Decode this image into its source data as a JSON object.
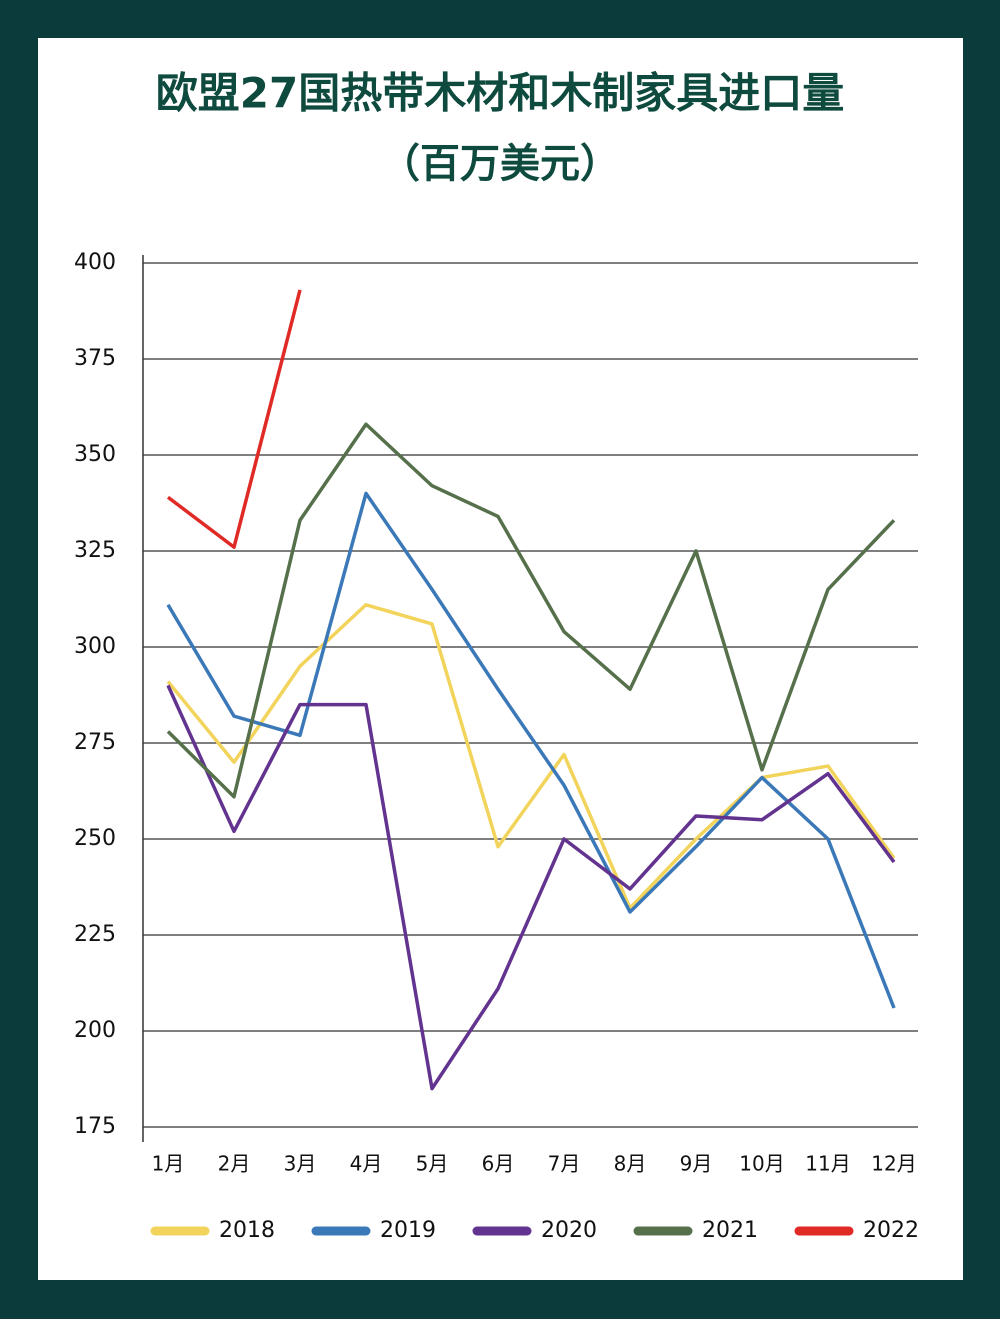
{
  "chart_data": {
    "type": "line",
    "title": "欧盟27国热带木材和木制家具进口量",
    "subtitle": "（百万美元）",
    "categories": [
      "1月",
      "2月",
      "3月",
      "4月",
      "5月",
      "6月",
      "7月",
      "8月",
      "9月",
      "10月",
      "11月",
      "12月"
    ],
    "series": [
      {
        "name": "2018",
        "color": "#f2d45c",
        "values": [
          291,
          270,
          295,
          311,
          306,
          248,
          272,
          232,
          250,
          266,
          269,
          245
        ]
      },
      {
        "name": "2019",
        "color": "#3a78b8",
        "values": [
          311,
          282,
          277,
          340,
          315,
          289,
          264,
          231,
          248,
          266,
          250,
          206
        ]
      },
      {
        "name": "2020",
        "color": "#62338f",
        "values": [
          290,
          252,
          285,
          285,
          185,
          211,
          250,
          237,
          256,
          255,
          267,
          244
        ]
      },
      {
        "name": "2021",
        "color": "#55704a",
        "values": [
          278,
          261,
          333,
          358,
          342,
          334,
          304,
          289,
          325,
          268,
          315,
          333
        ]
      },
      {
        "name": "2022",
        "color": "#e02a26",
        "values": [
          339,
          326,
          393,
          null,
          null,
          null,
          null,
          null,
          null,
          null,
          null,
          null
        ]
      }
    ],
    "ylim": [
      175,
      400
    ],
    "yticks": [
      175,
      200,
      225,
      250,
      275,
      300,
      325,
      350,
      375,
      400
    ],
    "grid": true,
    "legend": "bottom"
  }
}
